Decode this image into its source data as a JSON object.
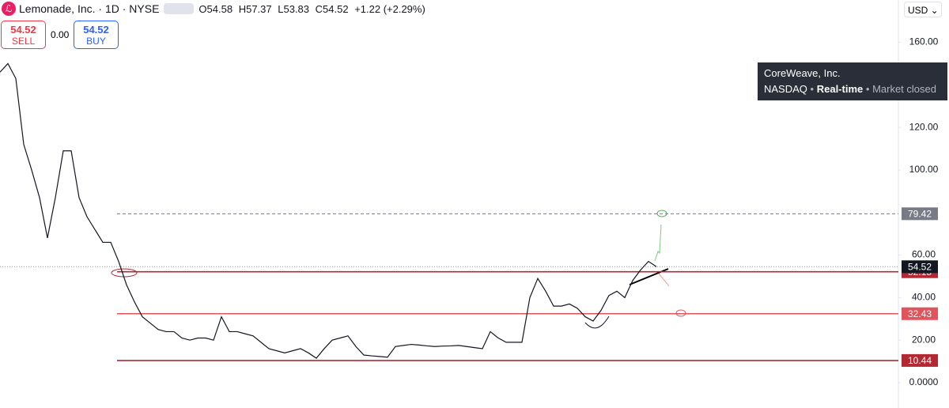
{
  "header": {
    "symbol": "Lemonade, Inc. · 1D · NYSE",
    "ohlc": [
      "O54.58",
      "H57.37",
      "L53.83",
      "C54.52",
      "+1.22 (+2.29%)"
    ],
    "sell": {
      "price": "54.52",
      "label": "SELL"
    },
    "spread": "0.00",
    "buy": {
      "price": "54.52",
      "label": "BUY"
    },
    "currency": "USD"
  },
  "tooltip": {
    "name": "CoreWeave, Inc.",
    "exchange": "NASDAQ",
    "status": "Real-time",
    "market": "Market closed"
  },
  "chart_data": {
    "type": "line",
    "series": [
      {
        "color": "#131722",
        "values": [
          146,
          150,
          143,
          112,
          100,
          87,
          68,
          87,
          109,
          109,
          87,
          78,
          72,
          66,
          66,
          57,
          46,
          38,
          31,
          28,
          25,
          24,
          24,
          21,
          20,
          21,
          21,
          20,
          31,
          24,
          24,
          23,
          22,
          19,
          16,
          15,
          14,
          15,
          16,
          14,
          11.5,
          16,
          20,
          21,
          22,
          17,
          13,
          12.6,
          12.3,
          12,
          17,
          17.5,
          18,
          17.7,
          17.3,
          17,
          17.2,
          17.3,
          17.5,
          17,
          16.5,
          16,
          24,
          21,
          19,
          19,
          19,
          40,
          49,
          43,
          36,
          36,
          37,
          35,
          31,
          29,
          34,
          41,
          43,
          40,
          48,
          53,
          57,
          54.52
        ]
      }
    ],
    "ylim": [
      -11.9,
      179.9
    ],
    "yticks": [
      {
        "value": 160,
        "label": "160.00"
      },
      {
        "value": 120,
        "label": "120.00"
      },
      {
        "value": 100,
        "label": "100.00"
      },
      {
        "value": 60,
        "label": "60.00"
      },
      {
        "value": 40,
        "label": "40.00"
      },
      {
        "value": 20,
        "label": "20.00"
      },
      {
        "value": 0,
        "label": "0.0000"
      }
    ],
    "last_price": {
      "value": 54.52,
      "color": "#131722"
    },
    "levels": [
      {
        "value": 79.42,
        "color": "#787b86",
        "dashed": true
      },
      {
        "value": 52.15,
        "color": "#b22833",
        "dashed": false
      },
      {
        "value": 32.43,
        "color": "#e0545c",
        "dashed": false
      },
      {
        "value": 10.44,
        "color": "#b22833",
        "dashed": false
      }
    ]
  }
}
